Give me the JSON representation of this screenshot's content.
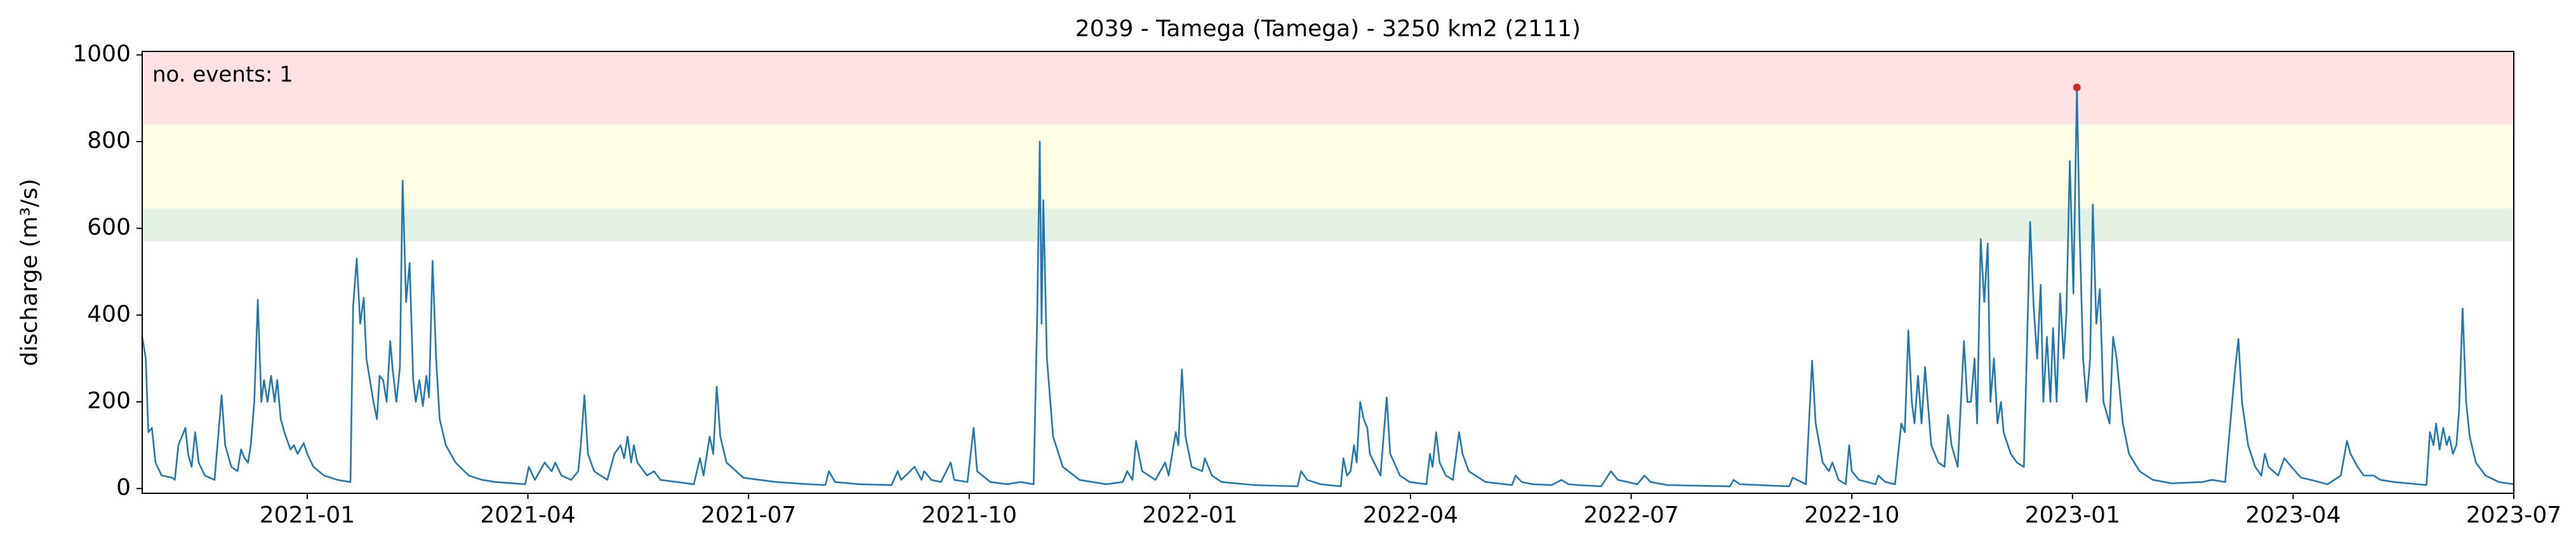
{
  "chart_data": {
    "type": "line",
    "title": "2039 - Tamega (Tamega) - 3250 km2 (2111)",
    "ylabel": "discharge (m³/s)",
    "annotation": "no. events: 1",
    "annotation_color": "#d62728",
    "color": "#1f77b4",
    "xlim": [
      2020.813,
      2023.5
    ],
    "ylim": [
      -11,
      1008
    ],
    "yticks": [
      0,
      200,
      400,
      600,
      800,
      1000
    ],
    "xticks": [
      {
        "value": 2021.0,
        "label": "2021-01"
      },
      {
        "value": 2021.25,
        "label": "2021-04"
      },
      {
        "value": 2021.5,
        "label": "2021-07"
      },
      {
        "value": 2021.75,
        "label": "2021-10"
      },
      {
        "value": 2022.0,
        "label": "2022-01"
      },
      {
        "value": 2022.25,
        "label": "2022-04"
      },
      {
        "value": 2022.5,
        "label": "2022-07"
      },
      {
        "value": 2022.75,
        "label": "2022-10"
      },
      {
        "value": 2023.0,
        "label": "2023-01"
      },
      {
        "value": 2023.25,
        "label": "2023-04"
      },
      {
        "value": 2023.5,
        "label": "2023-07"
      }
    ],
    "bands": [
      {
        "from": 570,
        "to": 646,
        "color": "#e3f1e3"
      },
      {
        "from": 646,
        "to": 840,
        "color": "#fefee4"
      },
      {
        "from": 840,
        "to": 1008,
        "color": "#ffe1e4"
      }
    ],
    "events": {
      "x": [
        2023.005
      ],
      "values": [
        925
      ],
      "color": "#d62728"
    },
    "x": [
      2020.813,
      2020.817,
      2020.82,
      2020.824,
      2020.828,
      2020.835,
      2020.847,
      2020.85,
      2020.854,
      2020.858,
      2020.862,
      2020.865,
      2020.869,
      2020.873,
      2020.877,
      2020.884,
      2020.895,
      2020.903,
      2020.907,
      2020.914,
      2020.921,
      2020.925,
      2020.929,
      2020.933,
      2020.936,
      2020.94,
      2020.944,
      2020.948,
      2020.951,
      2020.955,
      2020.959,
      2020.963,
      2020.966,
      2020.97,
      2020.974,
      2020.981,
      2020.985,
      2020.989,
      2020.996,
      2021.0,
      2021.007,
      2021.019,
      2021.034,
      2021.049,
      2021.052,
      2021.056,
      2021.06,
      2021.064,
      2021.067,
      2021.075,
      2021.079,
      2021.082,
      2021.086,
      2021.09,
      2021.094,
      2021.097,
      2021.101,
      2021.105,
      2021.108,
      2021.112,
      2021.116,
      2021.12,
      2021.123,
      2021.127,
      2021.131,
      2021.135,
      2021.138,
      2021.142,
      2021.146,
      2021.15,
      2021.157,
      2021.168,
      2021.183,
      2021.198,
      2021.213,
      2021.247,
      2021.251,
      2021.258,
      2021.269,
      2021.277,
      2021.281,
      2021.288,
      2021.299,
      2021.307,
      2021.31,
      2021.314,
      2021.318,
      2021.325,
      2021.34,
      2021.348,
      2021.355,
      2021.359,
      2021.363,
      2021.367,
      2021.37,
      2021.374,
      2021.385,
      2021.393,
      2021.4,
      2021.419,
      2021.438,
      2021.445,
      2021.449,
      2021.456,
      2021.46,
      2021.464,
      2021.468,
      2021.475,
      2021.494,
      2021.531,
      2021.568,
      2021.587,
      2021.591,
      2021.598,
      2021.625,
      2021.662,
      2021.669,
      2021.673,
      2021.688,
      2021.696,
      2021.699,
      2021.707,
      2021.718,
      2021.729,
      2021.733,
      2021.748,
      2021.755,
      2021.759,
      2021.774,
      2021.793,
      2021.808,
      2021.823,
      2021.827,
      2021.83,
      2021.832,
      2021.834,
      2021.838,
      2021.845,
      2021.856,
      2021.875,
      2021.905,
      2021.924,
      2021.929,
      2021.935,
      2021.939,
      2021.946,
      2021.961,
      2021.972,
      2021.976,
      2021.984,
      2021.987,
      2021.991,
      2021.995,
      2022.002,
      2022.014,
      2022.017,
      2022.025,
      2022.036,
      2022.073,
      2022.122,
      2022.126,
      2022.133,
      2022.148,
      2022.171,
      2022.174,
      2022.178,
      2022.182,
      2022.186,
      2022.189,
      2022.193,
      2022.197,
      2022.201,
      2022.204,
      2022.216,
      2022.223,
      2022.227,
      2022.238,
      2022.249,
      2022.268,
      2022.272,
      2022.275,
      2022.279,
      2022.283,
      2022.29,
      2022.298,
      2022.305,
      2022.309,
      2022.316,
      2022.335,
      2022.365,
      2022.369,
      2022.376,
      2022.388,
      2022.41,
      2022.421,
      2022.429,
      2022.44,
      2022.466,
      2022.477,
      2022.485,
      2022.496,
      2022.507,
      2022.515,
      2022.522,
      2022.541,
      2022.612,
      2022.616,
      2022.623,
      2022.679,
      2022.683,
      2022.698,
      2022.705,
      2022.709,
      2022.717,
      2022.724,
      2022.728,
      2022.735,
      2022.743,
      2022.747,
      2022.75,
      2022.758,
      2022.777,
      2022.78,
      2022.788,
      2022.799,
      2022.806,
      2022.81,
      2022.814,
      2022.818,
      2022.821,
      2022.825,
      2022.829,
      2022.833,
      2022.836,
      2022.84,
      2022.848,
      2022.855,
      2022.859,
      2022.863,
      2022.87,
      2022.877,
      2022.881,
      2022.885,
      2022.889,
      2022.892,
      2022.896,
      2022.9,
      2022.904,
      2022.907,
      2022.911,
      2022.915,
      2022.919,
      2022.922,
      2022.93,
      2022.937,
      2022.945,
      2022.952,
      2022.956,
      2022.96,
      2022.964,
      2022.967,
      2022.971,
      2022.975,
      2022.978,
      2022.982,
      2022.986,
      2022.99,
      2022.993,
      2022.997,
      2023.001,
      2023.005,
      2023.008,
      2023.012,
      2023.016,
      2023.02,
      2023.023,
      2023.027,
      2023.031,
      2023.035,
      2023.042,
      2023.046,
      2023.05,
      2023.057,
      2023.064,
      2023.076,
      2023.091,
      2023.113,
      2023.147,
      2023.158,
      2023.173,
      2023.184,
      2023.188,
      2023.192,
      2023.199,
      2023.207,
      2023.214,
      2023.218,
      2023.222,
      2023.233,
      2023.24,
      2023.248,
      2023.259,
      2023.27,
      2023.289,
      2023.304,
      2023.311,
      2023.315,
      2023.323,
      2023.33,
      2023.341,
      2023.349,
      2023.364,
      2023.401,
      2023.405,
      2023.409,
      2023.412,
      2023.416,
      2023.42,
      2023.424,
      2023.427,
      2023.431,
      2023.435,
      2023.438,
      2023.442,
      2023.446,
      2023.45,
      2023.457,
      2023.468,
      2023.483,
      2023.5
    ],
    "values": [
      350,
      300,
      130,
      140,
      60,
      30,
      25,
      20,
      100,
      120,
      140,
      80,
      50,
      130,
      60,
      30,
      20,
      215,
      100,
      50,
      40,
      90,
      70,
      60,
      100,
      200,
      435,
      200,
      250,
      200,
      260,
      200,
      250,
      160,
      130,
      90,
      100,
      80,
      105,
      80,
      50,
      30,
      20,
      15,
      420,
      530,
      380,
      440,
      300,
      200,
      160,
      260,
      250,
      200,
      340,
      270,
      200,
      280,
      710,
      430,
      520,
      250,
      200,
      250,
      190,
      260,
      210,
      525,
      300,
      160,
      100,
      60,
      30,
      20,
      15,
      10,
      50,
      20,
      60,
      40,
      60,
      30,
      20,
      40,
      100,
      215,
      80,
      40,
      20,
      80,
      100,
      70,
      120,
      60,
      100,
      60,
      30,
      40,
      20,
      15,
      10,
      70,
      30,
      120,
      80,
      235,
      120,
      60,
      25,
      15,
      10,
      8,
      40,
      15,
      10,
      8,
      40,
      20,
      50,
      20,
      40,
      20,
      15,
      60,
      20,
      15,
      140,
      40,
      15,
      10,
      15,
      10,
      400,
      800,
      380,
      665,
      300,
      120,
      50,
      20,
      10,
      15,
      40,
      20,
      110,
      40,
      20,
      60,
      30,
      130,
      100,
      275,
      120,
      50,
      40,
      70,
      30,
      15,
      8,
      5,
      40,
      20,
      10,
      5,
      70,
      30,
      40,
      100,
      60,
      200,
      160,
      140,
      80,
      30,
      210,
      80,
      30,
      15,
      10,
      80,
      50,
      130,
      60,
      30,
      20,
      130,
      80,
      40,
      15,
      8,
      30,
      15,
      10,
      8,
      20,
      10,
      8,
      5,
      40,
      20,
      15,
      10,
      30,
      15,
      8,
      5,
      20,
      10,
      5,
      25,
      10,
      295,
      150,
      60,
      40,
      60,
      20,
      10,
      100,
      40,
      20,
      10,
      30,
      15,
      10,
      150,
      130,
      365,
      200,
      150,
      260,
      150,
      280,
      200,
      100,
      60,
      50,
      170,
      100,
      50,
      340,
      200,
      200,
      300,
      150,
      575,
      430,
      565,
      200,
      300,
      150,
      200,
      130,
      80,
      60,
      50,
      615,
      420,
      300,
      470,
      200,
      350,
      200,
      370,
      200,
      450,
      300,
      400,
      755,
      450,
      925,
      600,
      300,
      200,
      300,
      655,
      380,
      460,
      200,
      150,
      350,
      300,
      150,
      80,
      40,
      20,
      12,
      15,
      20,
      15,
      270,
      345,
      200,
      100,
      50,
      30,
      80,
      50,
      30,
      70,
      50,
      25,
      20,
      10,
      30,
      110,
      80,
      50,
      30,
      30,
      20,
      15,
      8,
      130,
      100,
      150,
      90,
      140,
      100,
      120,
      80,
      100,
      180,
      415,
      200,
      120,
      60,
      30,
      15,
      10
    ]
  }
}
